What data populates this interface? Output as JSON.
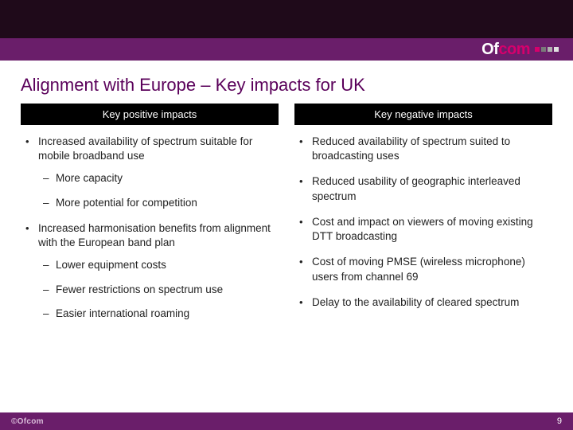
{
  "brand": {
    "logo_of": "Of",
    "logo_com": "com",
    "square_colors": [
      "#d6006c",
      "#7a7a7a",
      "#b0b0b0",
      "#e0e0e0"
    ],
    "footer_logo": "©Ofcom"
  },
  "colors": {
    "topbar_dark": "#1f0a1a",
    "topbar_purple": "#6a1e6a",
    "title_color": "#5a005a",
    "header_bg": "#000000",
    "header_fg": "#ffffff",
    "body_text": "#222222",
    "footer_bg": "#6a1e6a"
  },
  "title": "Alignment with Europe – Key impacts for UK",
  "positive": {
    "header": "Key positive impacts",
    "items": [
      {
        "text": "Increased availability of spectrum suitable for mobile broadband use",
        "sub": [
          "More capacity",
          "More potential for competition"
        ]
      },
      {
        "text": "Increased harmonisation benefits from alignment with the European band plan",
        "sub": [
          "Lower equipment costs",
          "Fewer restrictions on spectrum use",
          "Easier international roaming"
        ]
      }
    ]
  },
  "negative": {
    "header": "Key negative impacts",
    "items": [
      {
        "text": "Reduced availability of spectrum suited to broadcasting uses"
      },
      {
        "text": "Reduced usability of geographic interleaved spectrum"
      },
      {
        "text": "Cost and impact on viewers of moving existing DTT broadcasting"
      },
      {
        "text": "Cost of moving PMSE (wireless microphone) users from channel 69"
      },
      {
        "text": "Delay to the availability of cleared spectrum"
      }
    ]
  },
  "page_number": "9"
}
